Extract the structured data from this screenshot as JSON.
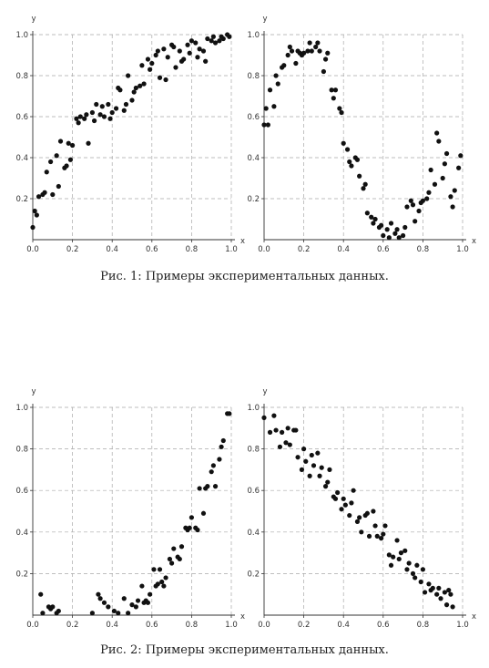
{
  "figures": [
    {
      "caption": "Рис. 1: Примеры экспериментальных данных."
    },
    {
      "caption": "Рис. 2: Примеры экспериментальных данных."
    }
  ],
  "chart_data": [
    {
      "type": "scatter",
      "xlabel": "x",
      "ylabel": "y",
      "xlim": [
        0,
        1
      ],
      "ylim": [
        0,
        1
      ],
      "xticks": [
        "0.0",
        "0.2",
        "0.4",
        "0.6",
        "0.8",
        "1.0"
      ],
      "yticks": [
        "0.2",
        "0.4",
        "0.6",
        "0.8",
        "1.0"
      ],
      "grid": "dashed",
      "color": "#111111",
      "x": [
        0.0,
        0.01,
        0.02,
        0.03,
        0.05,
        0.06,
        0.07,
        0.09,
        0.1,
        0.12,
        0.13,
        0.14,
        0.16,
        0.17,
        0.18,
        0.19,
        0.2,
        0.22,
        0.23,
        0.24,
        0.26,
        0.27,
        0.28,
        0.3,
        0.31,
        0.32,
        0.34,
        0.35,
        0.36,
        0.38,
        0.39,
        0.4,
        0.42,
        0.43,
        0.44,
        0.46,
        0.47,
        0.48,
        0.5,
        0.51,
        0.52,
        0.54,
        0.55,
        0.56,
        0.58,
        0.59,
        0.6,
        0.62,
        0.63,
        0.64,
        0.66,
        0.67,
        0.68,
        0.7,
        0.71,
        0.72,
        0.74,
        0.75,
        0.76,
        0.78,
        0.79,
        0.8,
        0.82,
        0.83,
        0.84,
        0.86,
        0.87,
        0.88,
        0.9,
        0.91,
        0.92,
        0.94,
        0.95,
        0.96,
        0.98,
        0.99
      ],
      "y": [
        0.06,
        0.14,
        0.12,
        0.21,
        0.22,
        0.23,
        0.33,
        0.38,
        0.22,
        0.41,
        0.26,
        0.48,
        0.35,
        0.36,
        0.47,
        0.39,
        0.46,
        0.59,
        0.57,
        0.6,
        0.59,
        0.61,
        0.47,
        0.62,
        0.58,
        0.66,
        0.61,
        0.65,
        0.6,
        0.66,
        0.59,
        0.62,
        0.64,
        0.74,
        0.73,
        0.63,
        0.66,
        0.8,
        0.68,
        0.72,
        0.74,
        0.75,
        0.85,
        0.76,
        0.88,
        0.83,
        0.86,
        0.9,
        0.92,
        0.79,
        0.93,
        0.78,
        0.89,
        0.95,
        0.94,
        0.84,
        0.92,
        0.87,
        0.88,
        0.95,
        0.91,
        0.97,
        0.96,
        0.89,
        0.93,
        0.92,
        0.87,
        0.98,
        0.97,
        0.99,
        0.96,
        0.97,
        0.99,
        0.98,
        1.0,
        0.99
      ]
    },
    {
      "type": "scatter",
      "xlabel": "x",
      "ylabel": "y",
      "xlim": [
        0,
        1
      ],
      "ylim": [
        0,
        1
      ],
      "xticks": [
        "0.0",
        "0.2",
        "0.4",
        "0.6",
        "0.8",
        "1.0"
      ],
      "yticks": [
        "0.2",
        "0.4",
        "0.6",
        "0.8",
        "1.0"
      ],
      "grid": "dashed",
      "color": "#111111",
      "x": [
        0.0,
        0.01,
        0.02,
        0.03,
        0.05,
        0.06,
        0.07,
        0.09,
        0.1,
        0.12,
        0.13,
        0.14,
        0.16,
        0.17,
        0.18,
        0.19,
        0.2,
        0.22,
        0.23,
        0.24,
        0.26,
        0.27,
        0.28,
        0.3,
        0.31,
        0.32,
        0.34,
        0.35,
        0.36,
        0.38,
        0.39,
        0.4,
        0.42,
        0.43,
        0.44,
        0.46,
        0.47,
        0.48,
        0.5,
        0.51,
        0.52,
        0.54,
        0.55,
        0.56,
        0.58,
        0.59,
        0.6,
        0.62,
        0.63,
        0.64,
        0.66,
        0.67,
        0.68,
        0.7,
        0.71,
        0.72,
        0.74,
        0.75,
        0.76,
        0.78,
        0.79,
        0.8,
        0.82,
        0.83,
        0.84,
        0.86,
        0.87,
        0.88,
        0.9,
        0.91,
        0.92,
        0.94,
        0.95,
        0.96,
        0.98,
        0.99
      ],
      "y": [
        0.56,
        0.64,
        0.56,
        0.73,
        0.65,
        0.8,
        0.76,
        0.84,
        0.85,
        0.9,
        0.94,
        0.92,
        0.86,
        0.92,
        0.91,
        0.9,
        0.91,
        0.92,
        0.96,
        0.92,
        0.94,
        0.96,
        0.92,
        0.82,
        0.88,
        0.91,
        0.73,
        0.69,
        0.73,
        0.64,
        0.62,
        0.47,
        0.44,
        0.38,
        0.36,
        0.4,
        0.39,
        0.31,
        0.25,
        0.27,
        0.13,
        0.11,
        0.08,
        0.1,
        0.06,
        0.07,
        0.02,
        0.05,
        0.01,
        0.08,
        0.03,
        0.05,
        0.01,
        0.02,
        0.06,
        0.16,
        0.19,
        0.17,
        0.09,
        0.14,
        0.18,
        0.19,
        0.2,
        0.23,
        0.34,
        0.27,
        0.52,
        0.48,
        0.3,
        0.37,
        0.42,
        0.21,
        0.16,
        0.24,
        0.35,
        0.41
      ]
    },
    {
      "type": "scatter",
      "xlabel": "x",
      "ylabel": "y",
      "xlim": [
        0,
        1
      ],
      "ylim": [
        0,
        1
      ],
      "xticks": [
        "0.0",
        "0.2",
        "0.4",
        "0.6",
        "0.8",
        "1.0"
      ],
      "yticks": [
        "0.2",
        "0.4",
        "0.6",
        "0.8",
        "1.0"
      ],
      "grid": "dashed",
      "color": "#111111",
      "x": [
        0.04,
        0.05,
        0.08,
        0.09,
        0.1,
        0.12,
        0.13,
        0.3,
        0.33,
        0.34,
        0.36,
        0.38,
        0.41,
        0.43,
        0.46,
        0.48,
        0.5,
        0.52,
        0.53,
        0.55,
        0.56,
        0.57,
        0.58,
        0.59,
        0.61,
        0.62,
        0.63,
        0.64,
        0.65,
        0.66,
        0.67,
        0.69,
        0.7,
        0.71,
        0.73,
        0.74,
        0.75,
        0.77,
        0.78,
        0.79,
        0.8,
        0.82,
        0.83,
        0.84,
        0.86,
        0.87,
        0.88,
        0.9,
        0.91,
        0.92,
        0.94,
        0.95,
        0.96,
        0.98,
        0.99
      ],
      "y": [
        0.1,
        0.01,
        0.04,
        0.03,
        0.04,
        0.01,
        0.02,
        0.01,
        0.1,
        0.08,
        0.06,
        0.04,
        0.02,
        0.01,
        0.08,
        0.01,
        0.05,
        0.04,
        0.07,
        0.14,
        0.06,
        0.07,
        0.06,
        0.1,
        0.22,
        0.14,
        0.15,
        0.22,
        0.16,
        0.14,
        0.18,
        0.27,
        0.25,
        0.32,
        0.28,
        0.27,
        0.33,
        0.42,
        0.41,
        0.42,
        0.47,
        0.42,
        0.41,
        0.61,
        0.49,
        0.61,
        0.62,
        0.69,
        0.72,
        0.62,
        0.75,
        0.81,
        0.84,
        0.97,
        0.97
      ]
    },
    {
      "type": "scatter",
      "xlabel": "x",
      "ylabel": "y",
      "xlim": [
        0,
        1
      ],
      "ylim": [
        0,
        1
      ],
      "xticks": [
        "0.0",
        "0.2",
        "0.4",
        "0.6",
        "0.8",
        "1.0"
      ],
      "yticks": [
        "0.2",
        "0.4",
        "0.6",
        "0.8",
        "1.0"
      ],
      "grid": "dashed",
      "color": "#111111",
      "x": [
        0.0,
        0.03,
        0.05,
        0.06,
        0.08,
        0.09,
        0.11,
        0.12,
        0.13,
        0.15,
        0.16,
        0.17,
        0.19,
        0.2,
        0.21,
        0.23,
        0.24,
        0.25,
        0.27,
        0.28,
        0.29,
        0.31,
        0.32,
        0.33,
        0.35,
        0.36,
        0.37,
        0.39,
        0.4,
        0.41,
        0.43,
        0.44,
        0.45,
        0.47,
        0.48,
        0.49,
        0.51,
        0.52,
        0.53,
        0.55,
        0.56,
        0.57,
        0.59,
        0.6,
        0.61,
        0.63,
        0.64,
        0.65,
        0.67,
        0.68,
        0.69,
        0.71,
        0.72,
        0.73,
        0.75,
        0.76,
        0.77,
        0.79,
        0.8,
        0.81,
        0.83,
        0.84,
        0.85,
        0.87,
        0.88,
        0.89,
        0.91,
        0.92,
        0.93,
        0.94,
        0.95
      ],
      "y": [
        0.95,
        0.88,
        0.96,
        0.89,
        0.81,
        0.88,
        0.83,
        0.9,
        0.82,
        0.89,
        0.89,
        0.76,
        0.7,
        0.8,
        0.74,
        0.67,
        0.77,
        0.72,
        0.78,
        0.67,
        0.71,
        0.62,
        0.64,
        0.7,
        0.57,
        0.56,
        0.59,
        0.51,
        0.56,
        0.53,
        0.48,
        0.54,
        0.6,
        0.45,
        0.47,
        0.4,
        0.48,
        0.49,
        0.38,
        0.5,
        0.43,
        0.38,
        0.37,
        0.39,
        0.43,
        0.29,
        0.24,
        0.28,
        0.36,
        0.27,
        0.3,
        0.31,
        0.22,
        0.25,
        0.2,
        0.18,
        0.24,
        0.16,
        0.22,
        0.11,
        0.15,
        0.12,
        0.13,
        0.1,
        0.13,
        0.08,
        0.11,
        0.05,
        0.12,
        0.1,
        0.04
      ]
    }
  ]
}
